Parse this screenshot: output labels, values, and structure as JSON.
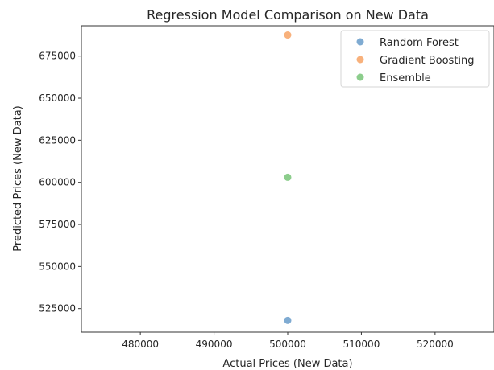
{
  "chart_data": {
    "type": "scatter",
    "title": "Regression Model Comparison on New Data",
    "xlabel": "Actual Prices (New Data)",
    "ylabel": "Predicted Prices (New Data)",
    "xlim": [
      472000,
      528000
    ],
    "ylim": [
      511000,
      693000
    ],
    "xticks": [
      480000,
      490000,
      500000,
      510000,
      520000
    ],
    "xtick_labels": [
      "480000",
      "490000",
      "500000",
      "510000",
      "520000"
    ],
    "yticks": [
      525000,
      550000,
      575000,
      600000,
      625000,
      650000,
      675000
    ],
    "ytick_labels": [
      "525000",
      "550000",
      "575000",
      "600000",
      "625000",
      "650000",
      "675000"
    ],
    "grid": false,
    "legend_position": "upper right",
    "series": [
      {
        "name": "Random Forest",
        "color": "#7fabd2",
        "x": [
          500000
        ],
        "y": [
          518000
        ]
      },
      {
        "name": "Gradient Boosting",
        "color": "#f8b17c",
        "x": [
          500000
        ],
        "y": [
          687500
        ]
      },
      {
        "name": "Ensemble",
        "color": "#8ccd8c",
        "x": [
          500000
        ],
        "y": [
          603000
        ]
      }
    ]
  }
}
